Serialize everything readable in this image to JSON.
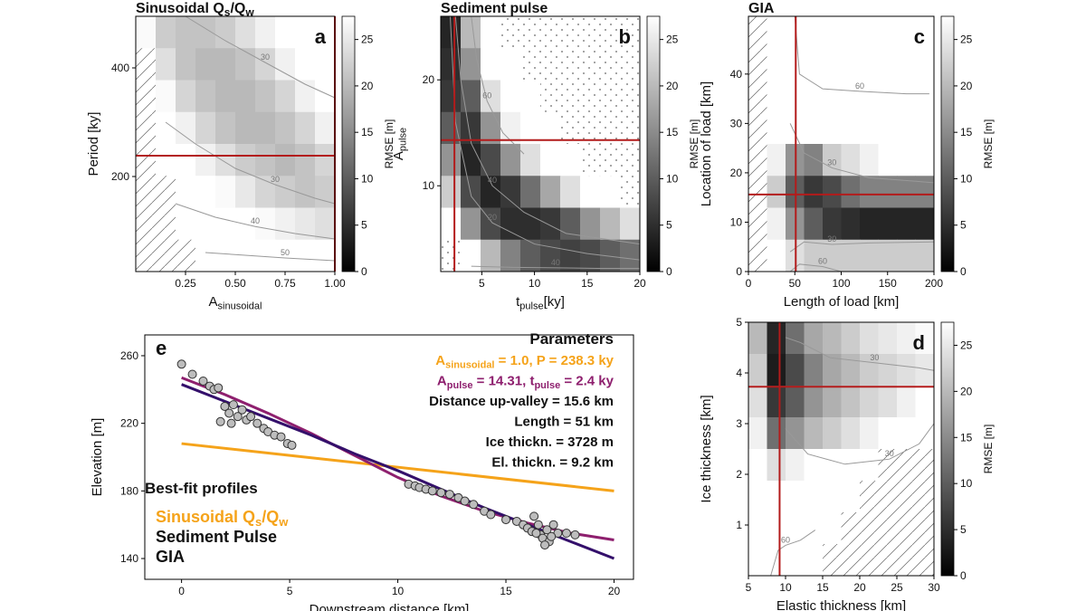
{
  "chart_data": [
    {
      "type": "heatmap",
      "panel_label": "a",
      "title": [
        {
          "text": "Sinusoidal Q"
        },
        {
          "sub": "s"
        },
        {
          "text": "/Q"
        },
        {
          "sub": "w"
        }
      ],
      "xlabel": [
        {
          "text": "A"
        },
        {
          "sub": "sinusoidal"
        }
      ],
      "ylabel": "Period [ky]",
      "xlim": [
        0,
        1
      ],
      "ylim": [
        25,
        495
      ],
      "xticks": [
        {
          "value": 0.25,
          "label": "0.25"
        },
        {
          "value": 0.5,
          "label": "0.50"
        },
        {
          "value": 0.75,
          "label": "0.75"
        },
        {
          "value": 1,
          "label": "1.00"
        }
      ],
      "yticks": [
        200,
        400
      ],
      "missing_fill": "hatch",
      "z": [
        [
          27,
          22,
          21,
          21,
          22,
          24,
          26,
          28,
          28,
          28
        ],
        [
          null,
          24,
          21,
          20,
          20,
          21,
          23,
          26,
          28,
          28
        ],
        [
          null,
          27,
          23,
          21,
          20,
          20,
          21,
          23,
          26,
          28
        ],
        [
          null,
          28,
          26,
          23,
          21,
          20,
          20,
          21,
          23,
          26
        ],
        [
          null,
          28,
          28,
          26,
          24,
          22,
          21,
          20,
          21,
          23
        ],
        [
          null,
          null,
          28,
          28,
          27,
          25,
          23,
          22,
          21,
          22
        ],
        [
          null,
          null,
          28,
          28,
          28,
          28,
          27,
          26,
          25,
          24
        ],
        [
          null,
          null,
          null,
          28,
          28,
          28,
          28,
          28,
          28,
          28
        ]
      ],
      "contours": [
        {
          "level": 30,
          "x": [
            0.25,
            0.45,
            0.65,
            0.85,
            1.0
          ],
          "y": [
            495,
            450,
            410,
            370,
            345
          ]
        },
        {
          "level": 30,
          "x": [
            0.15,
            0.3,
            0.5,
            0.7,
            0.9,
            1.0
          ],
          "y": [
            300,
            260,
            215,
            185,
            160,
            150
          ]
        },
        {
          "level": 40,
          "x": [
            0.2,
            0.4,
            0.6,
            0.8,
            1.0
          ],
          "y": [
            150,
            125,
            108,
            95,
            85
          ]
        },
        {
          "level": 50,
          "x": [
            0.35,
            0.55,
            0.75,
            1.0
          ],
          "y": [
            60,
            55,
            50,
            45
          ]
        }
      ],
      "best_fit": {
        "x": 1.0,
        "y": 238.3
      },
      "colorbar": {
        "lim": [
          0,
          27.5
        ],
        "ticks": [
          0,
          5,
          10,
          15,
          20,
          25
        ],
        "label": "RMSE [m]"
      }
    },
    {
      "type": "heatmap",
      "panel_label": "b",
      "title": "Sediment pulse",
      "xlabel": [
        {
          "text": "t"
        },
        {
          "sub": "pulse"
        },
        {
          "text": "[ky]"
        }
      ],
      "ylabel": [
        {
          "text": "A"
        },
        {
          "sub": "pulse"
        }
      ],
      "xlim": [
        1.1,
        20
      ],
      "ylim": [
        1.9,
        26
      ],
      "xticks": [
        5,
        10,
        15,
        20
      ],
      "yticks": [
        10,
        20
      ],
      "missing_fill": "dots",
      "z": [
        [
          4,
          20,
          28,
          null,
          null,
          null,
          null,
          null,
          null,
          null
        ],
        [
          5,
          16,
          28,
          28,
          null,
          null,
          null,
          null,
          null,
          null
        ],
        [
          6,
          10,
          24,
          28,
          28,
          null,
          null,
          null,
          null,
          null
        ],
        [
          10,
          6,
          16,
          26,
          28,
          28,
          null,
          null,
          null,
          null
        ],
        [
          16,
          4,
          8,
          16,
          24,
          28,
          28,
          null,
          null,
          null
        ],
        [
          22,
          8,
          4,
          6,
          12,
          18,
          24,
          28,
          28,
          null
        ],
        [
          28,
          16,
          8,
          5,
          5,
          6,
          10,
          16,
          20,
          24
        ],
        [
          null,
          28,
          20,
          14,
          10,
          8,
          7,
          8,
          10,
          12
        ]
      ],
      "contours": [
        {
          "level": 60,
          "x": [
            4,
            4.5,
            5.5,
            7,
            9
          ],
          "y": [
            26,
            22,
            18,
            15,
            13
          ]
        },
        {
          "level": 40,
          "x": [
            2.5,
            3,
            4,
            6,
            9,
            13,
            20
          ],
          "y": [
            26,
            20,
            14,
            10,
            7.5,
            5.5,
            4.5
          ]
        },
        {
          "level": 20,
          "x": [
            2,
            2.5,
            4,
            6,
            10,
            15,
            20
          ],
          "y": [
            26,
            16,
            9,
            6.5,
            4.5,
            3.6,
            3
          ]
        },
        {
          "level": 40,
          "x": [
            4,
            8,
            12,
            16,
            20
          ],
          "y": [
            2.4,
            2.3,
            2.25,
            2.2,
            2.2
          ]
        }
      ],
      "best_fit": {
        "x": 2.4,
        "y": 14.31
      },
      "colorbar": {
        "lim": [
          0,
          27.5
        ],
        "ticks": [
          0,
          5,
          10,
          15,
          20,
          25
        ],
        "label": "RMSE [m]"
      }
    },
    {
      "type": "heatmap",
      "panel_label": "c",
      "title": "GIA",
      "xlabel": "Length of load [km]",
      "ylabel": "Location of load [km]",
      "xlim": [
        0,
        200
      ],
      "ylim": [
        0,
        51.7
      ],
      "xticks": [
        0,
        50,
        100,
        150,
        200
      ],
      "yticks": [
        0,
        10,
        20,
        30,
        40
      ],
      "missing_fill": "hatch",
      "z": [
        [
          null,
          28,
          28,
          28,
          28,
          28,
          28,
          28,
          28,
          28
        ],
        [
          null,
          28,
          28,
          28,
          28,
          28,
          28,
          28,
          28,
          28
        ],
        [
          null,
          28,
          28,
          28,
          28,
          28,
          28,
          28,
          28,
          28
        ],
        [
          null,
          28,
          28,
          28,
          28,
          28,
          28,
          28,
          28,
          28
        ],
        [
          null,
          26,
          16,
          14,
          22,
          24,
          26,
          28,
          28,
          28
        ],
        [
          null,
          22,
          10,
          6,
          8,
          12,
          14,
          14,
          14,
          14
        ],
        [
          null,
          26,
          16,
          10,
          6,
          5,
          4,
          4,
          4,
          4
        ],
        [
          null,
          28,
          24,
          22,
          22,
          22,
          22,
          22,
          22,
          22
        ]
      ],
      "contours": [
        {
          "level": 60,
          "x": [
            50,
            55,
            80,
            120,
            170,
            195
          ],
          "y": [
            51.7,
            40,
            37,
            36.5,
            36,
            36
          ]
        },
        {
          "level": 30,
          "x": [
            45,
            60,
            90,
            130,
            200
          ],
          "y": [
            30,
            24,
            21,
            19,
            18
          ]
        },
        {
          "level": 30,
          "x": [
            45,
            60,
            90,
            130,
            200
          ],
          "y": [
            4,
            6,
            5.5,
            5.8,
            6
          ]
        },
        {
          "level": 60,
          "x": [
            45,
            55,
            80,
            100
          ],
          "y": [
            0,
            1.5,
            1,
            0
          ]
        }
      ],
      "best_fit": {
        "x": 51,
        "y": 15.6
      },
      "colorbar": {
        "lim": [
          0,
          27.5
        ],
        "ticks": [
          0,
          5,
          10,
          15,
          20,
          25
        ],
        "label": "RMSE [m]"
      }
    },
    {
      "type": "heatmap",
      "panel_label": "d",
      "xlabel": "Elastic thickness [km]",
      "ylabel": "Ice thickness [km]",
      "xlim": [
        5,
        30
      ],
      "ylim": [
        0,
        5
      ],
      "xticks": [
        5,
        10,
        15,
        20,
        25,
        30
      ],
      "yticks": [
        1,
        2,
        3,
        4,
        5
      ],
      "missing_fill": "hatch",
      "z": [
        [
          20,
          4,
          12,
          18,
          20,
          22,
          24,
          25,
          26,
          27
        ],
        [
          22,
          3,
          8,
          14,
          18,
          20,
          22,
          23,
          24,
          25
        ],
        [
          24,
          6,
          10,
          16,
          19,
          21,
          23,
          24,
          26,
          28
        ],
        [
          26,
          12,
          16,
          20,
          22,
          24,
          26,
          28,
          28,
          28
        ],
        [
          28,
          24,
          26,
          28,
          28,
          28,
          28,
          null,
          null,
          null
        ],
        [
          28,
          28,
          28,
          28,
          28,
          28,
          null,
          null,
          null,
          null
        ],
        [
          28,
          28,
          28,
          28,
          28,
          null,
          null,
          null,
          null,
          null
        ],
        [
          28,
          28,
          28,
          28,
          null,
          null,
          null,
          null,
          null,
          null
        ]
      ],
      "contours": [
        {
          "level": 30,
          "x": [
            10,
            12,
            16,
            22,
            28,
            30
          ],
          "y": [
            4.7,
            4.6,
            4.3,
            4.2,
            4.1,
            4.05
          ]
        },
        {
          "level": 30,
          "x": [
            10,
            13,
            18,
            24,
            28,
            30
          ],
          "y": [
            2.9,
            2.4,
            2.2,
            2.3,
            2.6,
            3
          ]
        },
        {
          "level": 60,
          "x": [
            8,
            9,
            10,
            12,
            14
          ],
          "y": [
            0,
            0.5,
            0.6,
            0.7,
            0.9
          ]
        }
      ],
      "best_fit": {
        "x": 9.2,
        "y": 3.728
      },
      "colorbar": {
        "lim": [
          0,
          27.5
        ],
        "ticks": [
          0,
          5,
          10,
          15,
          20,
          25
        ],
        "label": "RMSE [m]"
      }
    },
    {
      "type": "line",
      "panel_label": "e",
      "xlabel": "Downstream distance [km]",
      "ylabel": "Elevation [m]",
      "xlim": [
        -1.7,
        20.9
      ],
      "ylim": [
        127.7,
        272.3
      ],
      "xticks": [
        0,
        5,
        10,
        15,
        20
      ],
      "yticks": [
        140,
        180,
        220,
        260
      ],
      "legend_title": "Best-fit profiles",
      "series": [
        {
          "name": [
            {
              "text": "Sinusoidal Q"
            },
            {
              "sub": "s"
            },
            {
              "text": "/Q"
            },
            {
              "sub": "w"
            }
          ],
          "color": "#f5a31a",
          "x": [
            0,
            20
          ],
          "values": [
            208,
            180
          ]
        },
        {
          "name": "Sediment Pulse",
          "color": "#8e1f6e",
          "x": [
            0,
            2,
            4,
            6,
            8,
            10,
            12,
            14,
            16,
            18,
            20
          ],
          "values": [
            247,
            237,
            226,
            214,
            201,
            188,
            177,
            168,
            161,
            155,
            151
          ]
        },
        {
          "name": "GIA",
          "color": "#34106b",
          "x": [
            0,
            2,
            4,
            6,
            8,
            10,
            12,
            14,
            16,
            18,
            20
          ],
          "values": [
            243,
            233,
            223,
            213,
            202,
            192,
            181,
            170,
            160,
            150,
            140
          ]
        }
      ],
      "observations": {
        "color": "#bdbdbd",
        "x": [
          0,
          0.5,
          1,
          1.3,
          1.5,
          1.7,
          2,
          2.2,
          2.4,
          2.6,
          2.8,
          3,
          3.2,
          3.5,
          3.8,
          4,
          4.3,
          4.6,
          4.9,
          5.1,
          1.8,
          2.3,
          10.5,
          10.8,
          11,
          11.3,
          11.6,
          12,
          12.4,
          12.8,
          13.1,
          13.5,
          14,
          14.3,
          15,
          15.5,
          15.8,
          16,
          16.2,
          16.3,
          16.5,
          16.6,
          16.7,
          16.9,
          17,
          17.2,
          17.4,
          17.8,
          18.2,
          16.4,
          16.8,
          17.1
        ],
        "values": [
          255,
          249,
          245,
          242,
          240,
          241,
          230,
          226,
          231,
          224,
          228,
          222,
          224,
          220,
          217,
          215,
          213,
          212,
          208,
          207,
          221,
          220,
          184,
          183,
          182,
          181,
          180,
          179,
          178,
          176,
          174,
          172,
          168,
          166,
          163,
          162,
          160,
          158,
          156,
          165,
          160,
          154,
          152,
          157,
          150,
          160,
          155,
          155,
          154,
          155,
          148,
          153
        ]
      },
      "parameters_title": "Parameters",
      "parameters": [
        {
          "color": "#f5a31a",
          "text": [
            {
              "text": "A"
            },
            {
              "sub": "sinusoidal"
            },
            {
              "text": " = 1.0, P = 238.3 ky"
            }
          ]
        },
        {
          "color": "#8e1f6e",
          "text": [
            {
              "text": "A"
            },
            {
              "sub": "pulse"
            },
            {
              "text": " = 14.31, t"
            },
            {
              "sub": "pulse"
            },
            {
              "text": " = 2.4 ky"
            }
          ]
        },
        {
          "color": "#34106b",
          "text": "Distance up-valley = 15.6 km"
        },
        {
          "color": "#34106b",
          "text": "Length = 51 km"
        },
        {
          "color": "#34106b",
          "text": "Ice thickn. = 3728 m"
        },
        {
          "color": "#34106b",
          "text": "El. thickn. = 9.2 km"
        }
      ]
    }
  ]
}
